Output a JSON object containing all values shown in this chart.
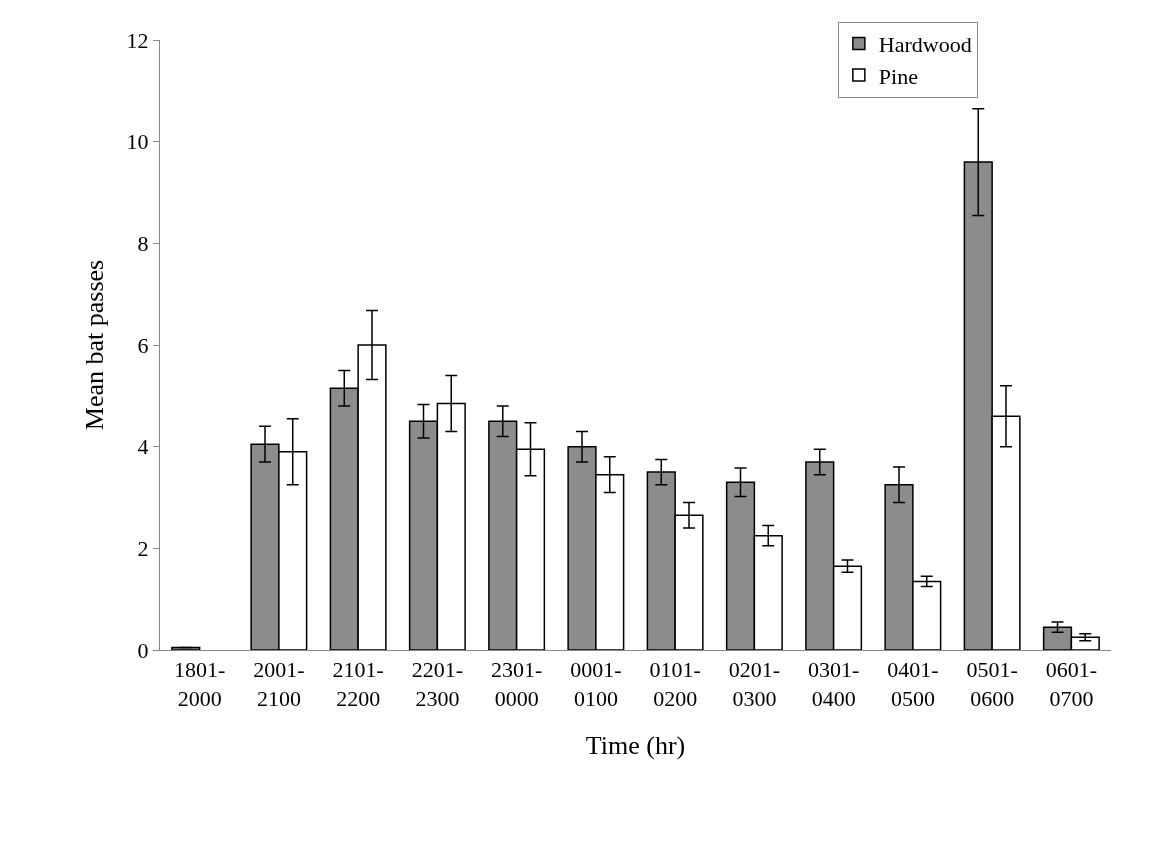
{
  "chart_data": {
    "type": "bar",
    "xlabel": "Time (hr)",
    "ylabel": "Mean bat passes",
    "categories": [
      "1801-\n2000",
      "2001-\n2100",
      "2101-\n2200",
      "2201-\n2300",
      "2301-\n0000",
      "0001-\n0100",
      "0101-\n0200",
      "0201-\n0300",
      "0301-\n0400",
      "0401-\n0500",
      "0501-\n0600",
      "0601-\n0700"
    ],
    "series": [
      {
        "name": "Hardwood",
        "color": "#8c8c8c",
        "values": [
          0.05,
          4.05,
          5.15,
          4.5,
          4.5,
          4.0,
          3.5,
          3.3,
          3.7,
          3.25,
          9.6,
          0.45
        ],
        "errors": [
          null,
          0.35,
          0.35,
          0.33,
          0.3,
          0.3,
          0.25,
          0.28,
          0.25,
          0.35,
          1.05,
          0.1
        ]
      },
      {
        "name": "Pine",
        "color": "#ffffff",
        "values": [
          null,
          3.9,
          6.0,
          4.85,
          3.95,
          3.45,
          2.65,
          2.25,
          1.65,
          1.35,
          4.6,
          0.25
        ],
        "errors": [
          null,
          0.65,
          0.68,
          0.55,
          0.52,
          0.35,
          0.25,
          0.2,
          0.12,
          0.1,
          0.6,
          0.07
        ]
      }
    ],
    "ylim": [
      0,
      12
    ],
    "yticks": [
      0,
      2,
      4,
      6,
      8,
      10,
      12
    ],
    "legend": "top right"
  }
}
